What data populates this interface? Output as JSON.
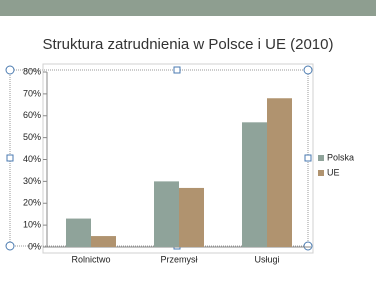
{
  "chart_data": {
    "type": "bar",
    "title": "Struktura zatrudnienia  w Polsce i UE (2010)",
    "categories": [
      "Rolnictwo",
      "Przemysł",
      "Usługi"
    ],
    "series": [
      {
        "name": "Polska",
        "color": "#8fa39a",
        "values": [
          13,
          30,
          57
        ]
      },
      {
        "name": "UE",
        "color": "#b0936f",
        "values": [
          5,
          27,
          68
        ]
      }
    ],
    "ylim": [
      0,
      80
    ],
    "yticks": [
      {
        "value": 0,
        "label": "0%"
      },
      {
        "value": 10,
        "label": "10%"
      },
      {
        "value": 20,
        "label": "20%"
      },
      {
        "value": 30,
        "label": "30%"
      },
      {
        "value": 40,
        "label": "40%"
      },
      {
        "value": 50,
        "label": "50%"
      },
      {
        "value": 60,
        "label": "60%"
      },
      {
        "value": 70,
        "label": "70%"
      },
      {
        "value": 80,
        "label": "80%"
      }
    ],
    "legend": "right"
  }
}
